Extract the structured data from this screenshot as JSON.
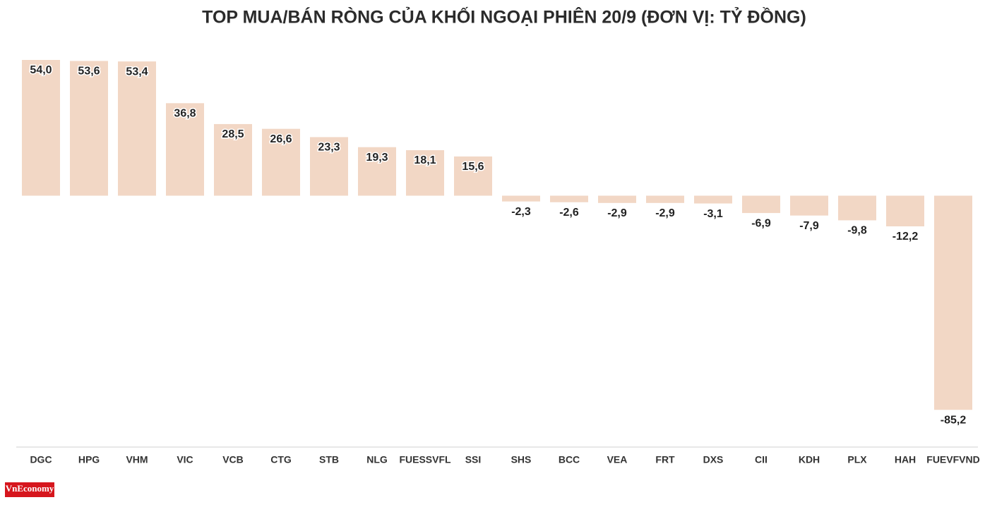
{
  "chart_data": {
    "type": "bar",
    "title": "TOP MUA/BÁN RÒNG CỦA KHỐI NGOẠI PHIÊN 20/9 (ĐƠN VỊ: TỶ ĐỒNG)",
    "categories": [
      "DGC",
      "HPG",
      "VHM",
      "VIC",
      "VCB",
      "CTG",
      "STB",
      "NLG",
      "FUESSVFL",
      "SSI",
      "SHS",
      "BCC",
      "VEA",
      "FRT",
      "DXS",
      "CII",
      "KDH",
      "PLX",
      "HAH",
      "FUEVFVND"
    ],
    "values": [
      54.0,
      53.6,
      53.4,
      36.8,
      28.5,
      26.6,
      23.3,
      19.3,
      18.1,
      15.6,
      -2.3,
      -2.6,
      -2.9,
      -2.9,
      -3.1,
      -6.9,
      -7.9,
      -9.8,
      -12.2,
      -85.2
    ],
    "value_labels": [
      "54,0",
      "53,6",
      "53,4",
      "36,8",
      "28,5",
      "26,6",
      "23,3",
      "19,3",
      "18,1",
      "15,6",
      "-2,3",
      "-2,6",
      "-2,9",
      "-2,9",
      "-3,1",
      "-6,9",
      "-7,9",
      "-9,8",
      "-12,2",
      "-85,2"
    ],
    "color": "#f2d7c5",
    "ylim": [
      -100,
      54
    ]
  },
  "logo_text": "VnEconomy"
}
